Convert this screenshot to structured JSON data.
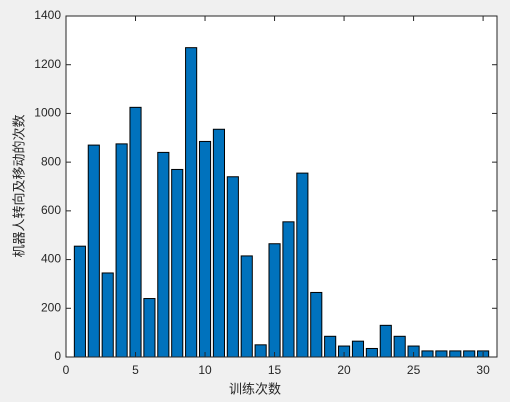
{
  "chart_data": {
    "type": "bar",
    "x_label": "训练次数",
    "y_label": "机器人转向及移动的次数",
    "x": [
      1,
      2,
      3,
      4,
      5,
      6,
      7,
      8,
      9,
      10,
      11,
      12,
      13,
      14,
      15,
      16,
      17,
      18,
      19,
      20,
      21,
      22,
      23,
      24,
      25,
      26,
      27,
      28,
      29,
      30
    ],
    "values": [
      455,
      870,
      345,
      875,
      1025,
      240,
      840,
      770,
      1270,
      885,
      935,
      740,
      415,
      50,
      465,
      555,
      755,
      265,
      85,
      45,
      65,
      35,
      130,
      85,
      45,
      25,
      25,
      25,
      25,
      25
    ],
    "color": "#0072bd",
    "xlim": [
      0,
      31
    ],
    "xticks": [
      0,
      5,
      10,
      15,
      20,
      25,
      30
    ],
    "ylim": [
      0,
      1400
    ],
    "yticks": [
      0,
      200,
      400,
      600,
      800,
      1000,
      1200,
      1400
    ],
    "grid": false
  }
}
